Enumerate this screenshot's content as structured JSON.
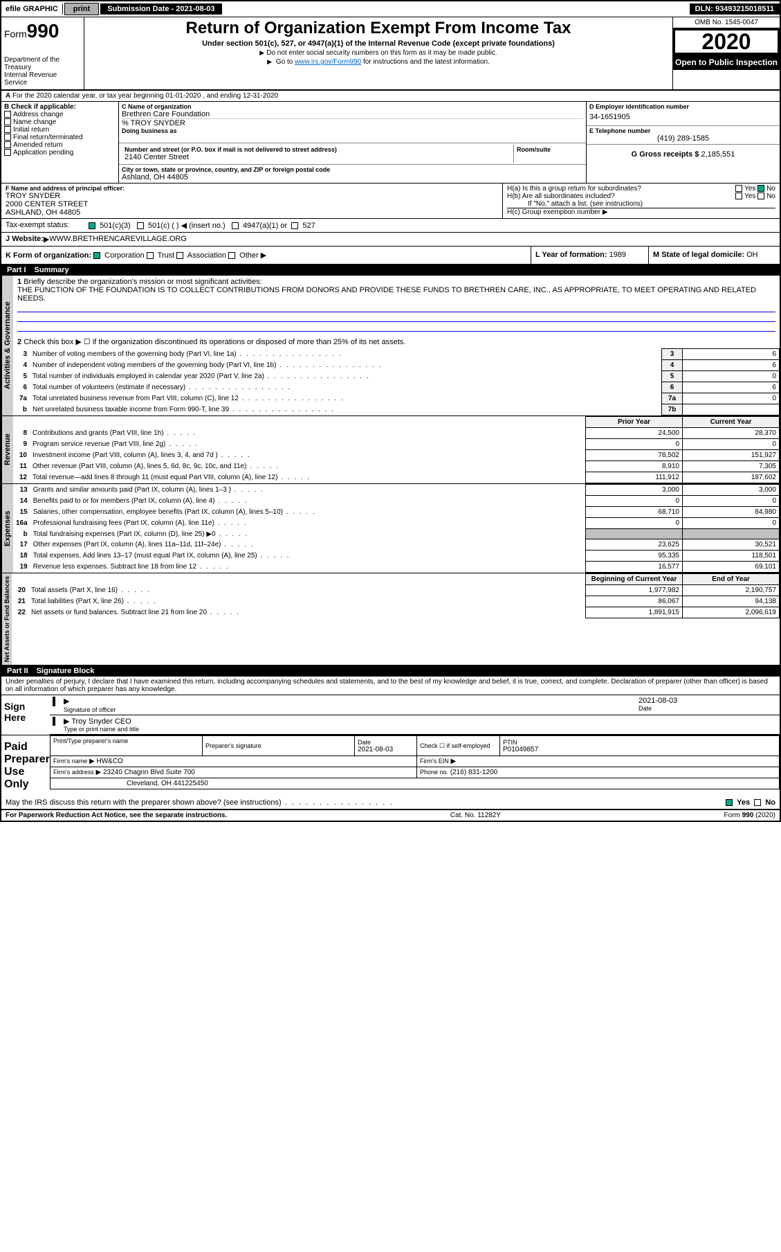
{
  "topbar": {
    "efile": "efile GRAPHIC",
    "print": "print",
    "sub_date_label": "Submission Date - 2021-08-03",
    "dln": "DLN: 93493215018511"
  },
  "header": {
    "form_prefix": "Form",
    "form_num": "990",
    "dept": "Department of the Treasury",
    "irs": "Internal Revenue Service",
    "title": "Return of Organization Exempt From Income Tax",
    "subtitle": "Under section 501(c), 527, or 4947(a)(1) of the Internal Revenue Code (except private foundations)",
    "note1": "Do not enter social security numbers on this form as it may be made public.",
    "note2_prefix": "Go to ",
    "note2_link": "www.irs.gov/Form990",
    "note2_suffix": " for instructions and the latest information.",
    "omb": "OMB No. 1545-0047",
    "year": "2020",
    "open": "Open to Public Inspection"
  },
  "section_a": "For the 2020 calendar year, or tax year beginning 01-01-2020    , and ending 12-31-2020",
  "box_b": {
    "label": "B Check if applicable:",
    "opts": [
      "Address change",
      "Name change",
      "Initial return",
      "Final return/terminated",
      "Amended return",
      "Application pending"
    ]
  },
  "box_c": {
    "name_label": "C Name of organization",
    "name": "Brethren Care Foundation",
    "care_of": "% TROY SNYDER",
    "dba_label": "Doing business as",
    "addr_label": "Number and street (or P.O. box if mail is not delivered to street address)",
    "room_label": "Room/suite",
    "addr": "2140 Center Street",
    "city_label": "City or town, state or province, country, and ZIP or foreign postal code",
    "city": "Ashland, OH  44805"
  },
  "box_d": {
    "label": "D Employer identification number",
    "val": "34-1651905"
  },
  "box_e": {
    "label": "E Telephone number",
    "val": "(419) 289-1585"
  },
  "box_g": {
    "label": "G Gross receipts $",
    "val": "2,185,551"
  },
  "box_f": {
    "label": "F  Name and address of principal officer:",
    "name": "TROY SNYDER",
    "addr": "2000 CENTER STREET",
    "city": "ASHLAND, OH  44805"
  },
  "box_h": {
    "a_label": "H(a)  Is this a group return for subordinates?",
    "b_label": "H(b)  Are all subordinates included?",
    "b_note": "If \"No,\" attach a list. (see instructions)",
    "c_label": "H(c)  Group exemption number",
    "yes": "Yes",
    "no": "No"
  },
  "box_i": {
    "label": "Tax-exempt status:",
    "opt1": "501(c)(3)",
    "opt2": "501(c) (  )",
    "opt2_note": "(insert no.)",
    "opt3": "4947(a)(1) or",
    "opt4": "527"
  },
  "box_j": {
    "label": "Website:",
    "val": "WWW.BRETHRENCAREVILLAGE.ORG"
  },
  "box_k": {
    "label": "K Form of organization:",
    "opts": [
      "Corporation",
      "Trust",
      "Association",
      "Other"
    ]
  },
  "box_l": {
    "label": "L Year of formation:",
    "val": "1989"
  },
  "box_m": {
    "label": "M State of legal domicile:",
    "val": "OH"
  },
  "part1": {
    "title": "Part I",
    "name": "Summary",
    "line1_label": "Briefly describe the organization's mission or most significant activities:",
    "line1_text": "THE FUNCTION OF THE FOUNDATION IS TO COLLECT CONTRIBUTIONS FROM DONORS AND PROVIDE THESE FUNDS TO BRETHREN CARE, INC., AS APPROPRIATE, TO MEET OPERATING AND RELATED NEEDS.",
    "line2": "Check this box ▶ ☐ if the organization discontinued its operations or disposed of more than 25% of its net assets.",
    "sect_gov": "Activities & Governance",
    "sect_rev": "Revenue",
    "sect_exp": "Expenses",
    "sect_net": "Net Assets or Fund Balances",
    "col_prior": "Prior Year",
    "col_curr": "Current Year",
    "col_beg": "Beginning of Current Year",
    "col_end": "End of Year",
    "lines_gov": [
      {
        "n": "3",
        "d": "Number of voting members of the governing body (Part VI, line 1a)",
        "box": "3",
        "v": "6"
      },
      {
        "n": "4",
        "d": "Number of independent voting members of the governing body (Part VI, line 1b)",
        "box": "4",
        "v": "6"
      },
      {
        "n": "5",
        "d": "Total number of individuals employed in calendar year 2020 (Part V, line 2a)",
        "box": "5",
        "v": "0"
      },
      {
        "n": "6",
        "d": "Total number of volunteers (estimate if necessary)",
        "box": "6",
        "v": "6"
      },
      {
        "n": "7a",
        "d": "Total unrelated business revenue from Part VIII, column (C), line 12",
        "box": "7a",
        "v": "0"
      },
      {
        "n": "b",
        "d": "Net unrelated business taxable income from Form 990-T, line 39",
        "box": "7b",
        "v": ""
      }
    ],
    "lines_rev": [
      {
        "n": "8",
        "d": "Contributions and grants (Part VIII, line 1h)",
        "p": "24,500",
        "c": "28,370"
      },
      {
        "n": "9",
        "d": "Program service revenue (Part VIII, line 2g)",
        "p": "0",
        "c": "0"
      },
      {
        "n": "10",
        "d": "Investment income (Part VIII, column (A), lines 3, 4, and 7d )",
        "p": "78,502",
        "c": "151,927"
      },
      {
        "n": "11",
        "d": "Other revenue (Part VIII, column (A), lines 5, 6d, 8c, 9c, 10c, and 11e)",
        "p": "8,910",
        "c": "7,305"
      },
      {
        "n": "12",
        "d": "Total revenue—add lines 8 through 11 (must equal Part VIII, column (A), line 12)",
        "p": "111,912",
        "c": "187,602"
      }
    ],
    "lines_exp": [
      {
        "n": "13",
        "d": "Grants and similar amounts paid (Part IX, column (A), lines 1–3 )",
        "p": "3,000",
        "c": "3,000"
      },
      {
        "n": "14",
        "d": "Benefits paid to or for members (Part IX, column (A), line 4)",
        "p": "0",
        "c": "0"
      },
      {
        "n": "15",
        "d": "Salaries, other compensation, employee benefits (Part IX, column (A), lines 5–10)",
        "p": "68,710",
        "c": "84,980"
      },
      {
        "n": "16a",
        "d": "Professional fundraising fees (Part IX, column (A), line 11e)",
        "p": "0",
        "c": "0"
      },
      {
        "n": "b",
        "d": "Total fundraising expenses (Part IX, column (D), line 25) ▶0",
        "p": "",
        "c": "",
        "shaded": true
      },
      {
        "n": "17",
        "d": "Other expenses (Part IX, column (A), lines 11a–11d, 11f–24e)",
        "p": "23,625",
        "c": "30,521"
      },
      {
        "n": "18",
        "d": "Total expenses. Add lines 13–17 (must equal Part IX, column (A), line 25)",
        "p": "95,335",
        "c": "118,501"
      },
      {
        "n": "19",
        "d": "Revenue less expenses. Subtract line 18 from line 12",
        "p": "16,577",
        "c": "69,101"
      }
    ],
    "lines_net": [
      {
        "n": "20",
        "d": "Total assets (Part X, line 16)",
        "p": "1,977,982",
        "c": "2,190,757"
      },
      {
        "n": "21",
        "d": "Total liabilities (Part X, line 26)",
        "p": "86,067",
        "c": "94,138"
      },
      {
        "n": "22",
        "d": "Net assets or fund balances. Subtract line 21 from line 20",
        "p": "1,891,915",
        "c": "2,096,619"
      }
    ]
  },
  "part2": {
    "title": "Part II",
    "name": "Signature Block",
    "penalty": "Under penalties of perjury, I declare that I have examined this return, including accompanying schedules and statements, and to the best of my knowledge and belief, it is true, correct, and complete. Declaration of preparer (other than officer) is based on all information of which preparer has any knowledge.",
    "sign_here": "Sign Here",
    "sig_officer": "Signature of officer",
    "sig_date": "2021-08-03",
    "date_label": "Date",
    "officer_name": "Troy Snyder CEO",
    "officer_sub": "Type or print name and title",
    "paid": "Paid Preparer Use Only",
    "prep_name_label": "Print/Type preparer's name",
    "prep_sig_label": "Preparer's signature",
    "prep_date": "2021-08-03",
    "check_self": "Check ☐ if self-employed",
    "ptin_label": "PTIN",
    "ptin": "P01049857",
    "firm_name_label": "Firm's name",
    "firm_name": "HW&CO",
    "firm_ein_label": "Firm's EIN",
    "firm_addr_label": "Firm's address",
    "firm_addr1": "23240 Chagrin Blvd Suite 700",
    "firm_addr2": "Cleveland, OH  441225450",
    "phone_label": "Phone no.",
    "phone": "(216) 831-1200",
    "discuss": "May the IRS discuss this return with the preparer shown above? (see instructions)",
    "yes": "Yes",
    "no": "No"
  },
  "footer": {
    "left": "For Paperwork Reduction Act Notice, see the separate instructions.",
    "mid": "Cat. No. 11282Y",
    "right": "Form 990 (2020)"
  }
}
